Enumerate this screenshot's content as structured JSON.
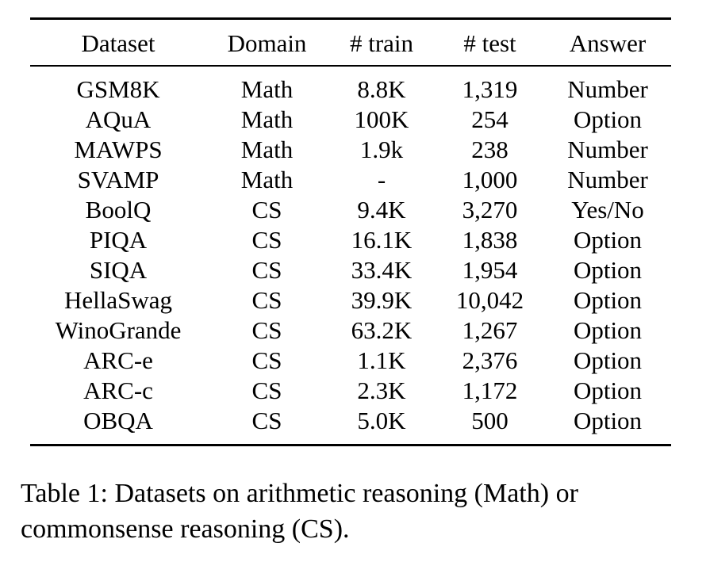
{
  "table": {
    "headers": [
      "Dataset",
      "Domain",
      "# train",
      "# test",
      "Answer"
    ],
    "rows": [
      [
        "GSM8K",
        "Math",
        "8.8K",
        "1,319",
        "Number"
      ],
      [
        "AQuA",
        "Math",
        "100K",
        "254",
        "Option"
      ],
      [
        "MAWPS",
        "Math",
        "1.9k",
        "238",
        "Number"
      ],
      [
        "SVAMP",
        "Math",
        "-",
        "1,000",
        "Number"
      ],
      [
        "BoolQ",
        "CS",
        "9.4K",
        "3,270",
        "Yes/No"
      ],
      [
        "PIQA",
        "CS",
        "16.1K",
        "1,838",
        "Option"
      ],
      [
        "SIQA",
        "CS",
        "33.4K",
        "1,954",
        "Option"
      ],
      [
        "HellaSwag",
        "CS",
        "39.9K",
        "10,042",
        "Option"
      ],
      [
        "WinoGrande",
        "CS",
        "63.2K",
        "1,267",
        "Option"
      ],
      [
        "ARC-e",
        "CS",
        "1.1K",
        "2,376",
        "Option"
      ],
      [
        "ARC-c",
        "CS",
        "2.3K",
        "1,172",
        "Option"
      ],
      [
        "OBQA",
        "CS",
        "5.0K",
        "500",
        "Option"
      ]
    ]
  },
  "caption": {
    "line1": "Table 1:  Datasets on arithmetic reasoning (Math) or",
    "line2": "commonsense reasoning (CS)."
  }
}
